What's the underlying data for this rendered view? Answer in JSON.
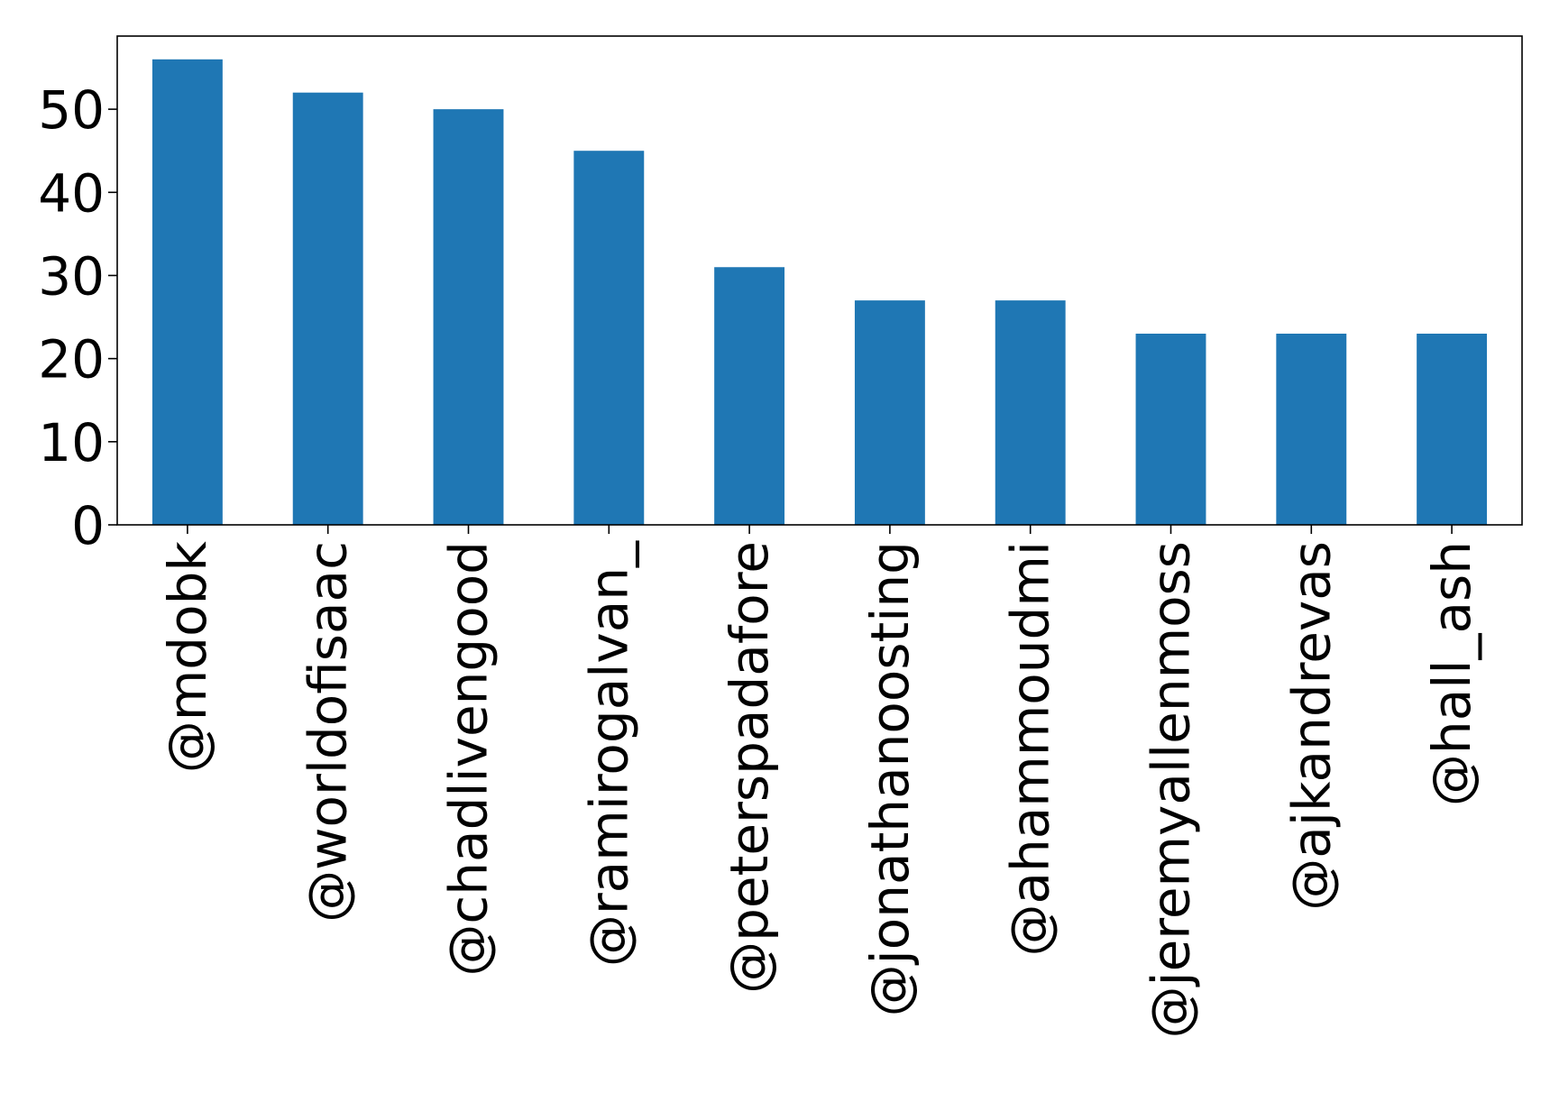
{
  "chart_data": {
    "type": "bar",
    "title": "",
    "xlabel": "",
    "ylabel": "",
    "categories": [
      "@mdobk",
      "@worldofisaac",
      "@chadlivengood",
      "@ramirogalvan_",
      "@peterspadafore",
      "@jonathanoosting",
      "@ahammoudmi",
      "@jeremyallenmoss",
      "@ajkandrevas",
      "@hall_ash"
    ],
    "values": [
      56,
      52,
      50,
      45,
      31,
      27,
      27,
      23,
      23,
      23
    ],
    "ylim": [
      0,
      58.8
    ],
    "yticks": [
      0,
      10,
      20,
      30,
      40,
      50
    ],
    "grid": false,
    "legend": "none",
    "bar_color": "#1f77b4"
  }
}
